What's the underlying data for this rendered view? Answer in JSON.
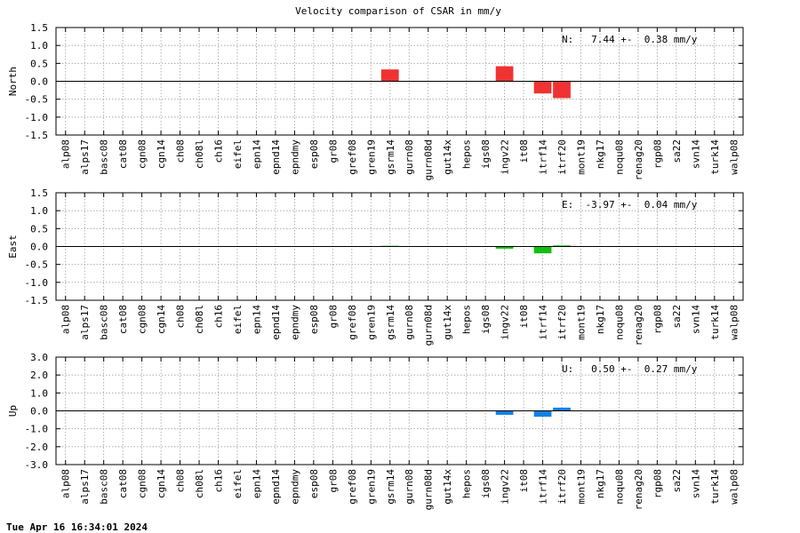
{
  "title": "Velocity comparison of CSAR in mm/y",
  "timestamp": "Tue Apr 16 16:34:01 2024",
  "chart_data": {
    "type": "bar",
    "categories": [
      "alp08",
      "alps17",
      "basc08",
      "cat08",
      "cgn08",
      "cgn14",
      "ch08",
      "ch08l",
      "ch16",
      "eifel",
      "epn14",
      "epnd14",
      "epndmy",
      "esp08",
      "gr08",
      "gref08",
      "gren19",
      "gsrm14",
      "gurn08",
      "gurn08d",
      "gut14x",
      "hepos",
      "igs08",
      "ingv22",
      "it08",
      "itrf14",
      "itrf20",
      "mont19",
      "nkg17",
      "noqu08",
      "renag20",
      "rgp08",
      "sa22",
      "svn14",
      "turk14",
      "walp08"
    ],
    "grid": true,
    "panels": [
      {
        "ylabel": "North",
        "ylim": [
          -1.5,
          1.5
        ],
        "yticks": [
          "-1.5",
          "-1.0",
          "-0.5",
          "0.0",
          "0.5",
          "1.0",
          "1.5"
        ],
        "color": "#f03232",
        "annotation": "N:   7.44 +-  0.38 mm/y",
        "values": [
          0,
          0,
          0,
          0,
          0,
          0,
          0,
          0,
          0,
          0,
          0,
          0,
          0,
          0,
          0,
          0,
          0,
          0.33,
          0,
          0,
          0,
          0,
          0,
          0.42,
          0,
          -0.34,
          -0.47,
          0,
          0,
          0,
          0,
          0,
          0,
          0,
          0,
          0
        ]
      },
      {
        "ylabel": "East",
        "ylim": [
          -1.5,
          1.5
        ],
        "yticks": [
          "-1.5",
          "-1.0",
          "-0.5",
          "0.0",
          "0.5",
          "1.0",
          "1.5"
        ],
        "color": "#10c010",
        "annotation": "E:  -3.97 +-  0.04 mm/y",
        "values": [
          0,
          0,
          0,
          0,
          0,
          0,
          0,
          0,
          0,
          0,
          0,
          0,
          0,
          0,
          0,
          0,
          0,
          0.02,
          0,
          0,
          0,
          0,
          0,
          -0.06,
          0,
          -0.19,
          0.03,
          0,
          0,
          0,
          0,
          0,
          0,
          0,
          0,
          0
        ]
      },
      {
        "ylabel": "Up",
        "ylim": [
          -3.0,
          3.0
        ],
        "yticks": [
          "-3.0",
          "-2.0",
          "-1.0",
          "0.0",
          "1.0",
          "2.0",
          "3.0"
        ],
        "color": "#1080e8",
        "annotation": "U:   0.50 +-  0.27 mm/y",
        "values": [
          0,
          0,
          0,
          0,
          0,
          0,
          0,
          0,
          0,
          0,
          0,
          0,
          0,
          0,
          0,
          0,
          0,
          0,
          0,
          0,
          0,
          0,
          0,
          -0.22,
          0,
          -0.33,
          0.18,
          0,
          0,
          0,
          0,
          0,
          0,
          0,
          0,
          0
        ]
      }
    ]
  }
}
